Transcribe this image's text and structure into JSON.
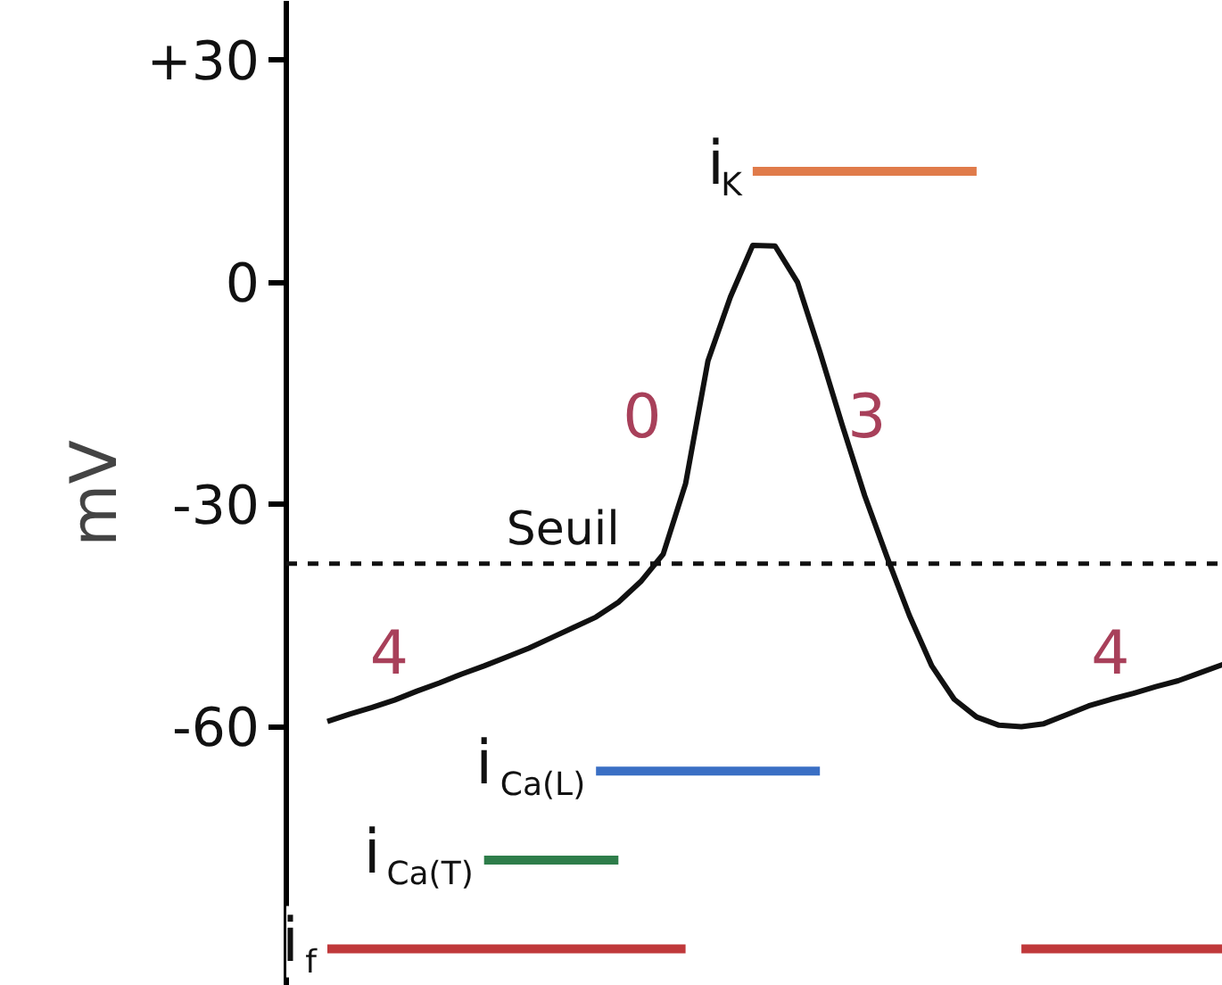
{
  "chart_data": {
    "type": "line",
    "ylabel": "mV",
    "ylim": [
      -95,
      38
    ],
    "categories": [
      null,
      null,
      null,
      null,
      null,
      null,
      null,
      null,
      null,
      null,
      null,
      null,
      null,
      null,
      null,
      null,
      null,
      null,
      null,
      null,
      null,
      null,
      null,
      null,
      null,
      null,
      null,
      null,
      null,
      null,
      null,
      null,
      null,
      null,
      null,
      null,
      null,
      null,
      null,
      null,
      null
    ],
    "yticks": [
      {
        "value": 30,
        "label": "+30"
      },
      {
        "value": 0,
        "label": "0"
      },
      {
        "value": -30,
        "label": "-30"
      },
      {
        "value": -60,
        "label": "-60"
      }
    ],
    "tick_labels": "y",
    "marker": "none",
    "series": [
      {
        "color": "#111111",
        "values": [
          -59.3,
          -58.3,
          -57.4,
          -56.4,
          -55.2,
          -54.1,
          -52.9,
          -51.8,
          -50.6,
          -49.4,
          -48.0,
          -46.6,
          -45.2,
          -43.2,
          -40.4,
          -36.7,
          -27.2,
          -10.6,
          -2.0,
          5.0,
          4.9,
          0.0,
          -9.4,
          -19.3,
          -28.8,
          -37.1,
          -45.0,
          -51.8,
          -56.3,
          -58.7,
          -59.8,
          -60.0,
          -59.6,
          -58.4,
          -57.2,
          -56.3,
          -55.5,
          -54.6,
          -53.8,
          -52.7,
          -51.6
        ]
      },
      {
        "name": "i$_{K}$",
        "color": "#e07b4a",
        "values": [
          null,
          null,
          null,
          null,
          null,
          null,
          null,
          null,
          null,
          null,
          null,
          null,
          null,
          null,
          null,
          null,
          null,
          null,
          null,
          15,
          15,
          15,
          15,
          15,
          15,
          15,
          15,
          15,
          15,
          15,
          null,
          null,
          null,
          null,
          null,
          null,
          null,
          null,
          null,
          null,
          null
        ]
      },
      {
        "name": "i$_{Ca(L)}$",
        "color": "#3a6fc4",
        "values": [
          null,
          null,
          null,
          null,
          null,
          null,
          null,
          null,
          null,
          null,
          null,
          null,
          -66,
          -66,
          -66,
          -66,
          -66,
          -66,
          -66,
          -66,
          -66,
          -66,
          -66,
          null,
          null,
          null,
          null,
          null,
          null,
          null,
          null,
          null,
          null,
          null,
          null,
          null,
          null,
          null,
          null,
          null,
          null
        ]
      },
      {
        "name": "i$_{Ca(T)}$",
        "color": "#2e7d4a",
        "values": [
          null,
          null,
          null,
          null,
          null,
          null,
          null,
          -78,
          -78,
          -78,
          -78,
          -78,
          -78,
          -78,
          null,
          null,
          null,
          null,
          null,
          null,
          null,
          null,
          null,
          null,
          null,
          null,
          null,
          null,
          null,
          null,
          null,
          null,
          null,
          null,
          null,
          null,
          null,
          null,
          null,
          null,
          null
        ]
      },
      {
        "name": "i$_{f}$",
        "color": "#c0393b",
        "values": [
          -90,
          -90,
          -90,
          -90,
          -90,
          -90,
          -90,
          -90,
          -90,
          -90,
          -90,
          -90,
          -90,
          -90,
          -90,
          -90,
          -90,
          null,
          null,
          null,
          null,
          null,
          null,
          null,
          null,
          null,
          null,
          null,
          null,
          null,
          null,
          -90,
          -90,
          -90,
          -90,
          -90,
          -90,
          -90,
          -90,
          -90,
          -90
        ]
      }
    ],
    "ref_lines": [
      {
        "axis": "y",
        "value": -38,
        "label": "Seuil",
        "color": "#111111",
        "line_style": "dashed"
      }
    ],
    "annotations": [
      "0",
      "3",
      "4",
      "4"
    ]
  }
}
